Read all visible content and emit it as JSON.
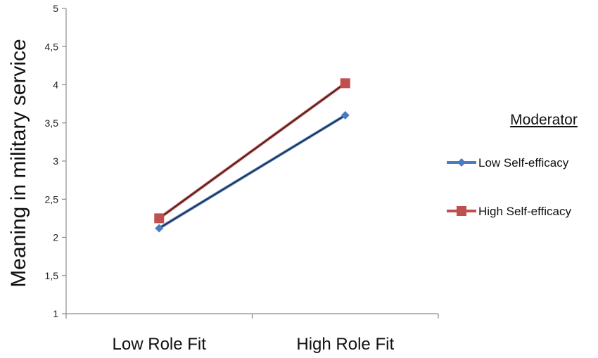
{
  "chart_data": {
    "type": "line",
    "categories": [
      "Low Role Fit",
      "High Role Fit"
    ],
    "series": [
      {
        "name": "Low Self-efficacy",
        "values": [
          2.12,
          3.6
        ],
        "color": "#4a7cc1",
        "marker": "diamond"
      },
      {
        "name": "High Self-efficacy",
        "values": [
          2.25,
          4.02
        ],
        "color": "#c0504d",
        "marker": "square"
      }
    ],
    "ylabel": "Meaning in military service",
    "xlabel": "",
    "ylim": [
      1,
      5
    ],
    "yticks": [
      "1",
      "1,5",
      "2",
      "2,5",
      "3",
      "3,5",
      "4",
      "4,5",
      "5"
    ],
    "legend_title": "Moderator",
    "legend_position": "right",
    "grid": false
  }
}
